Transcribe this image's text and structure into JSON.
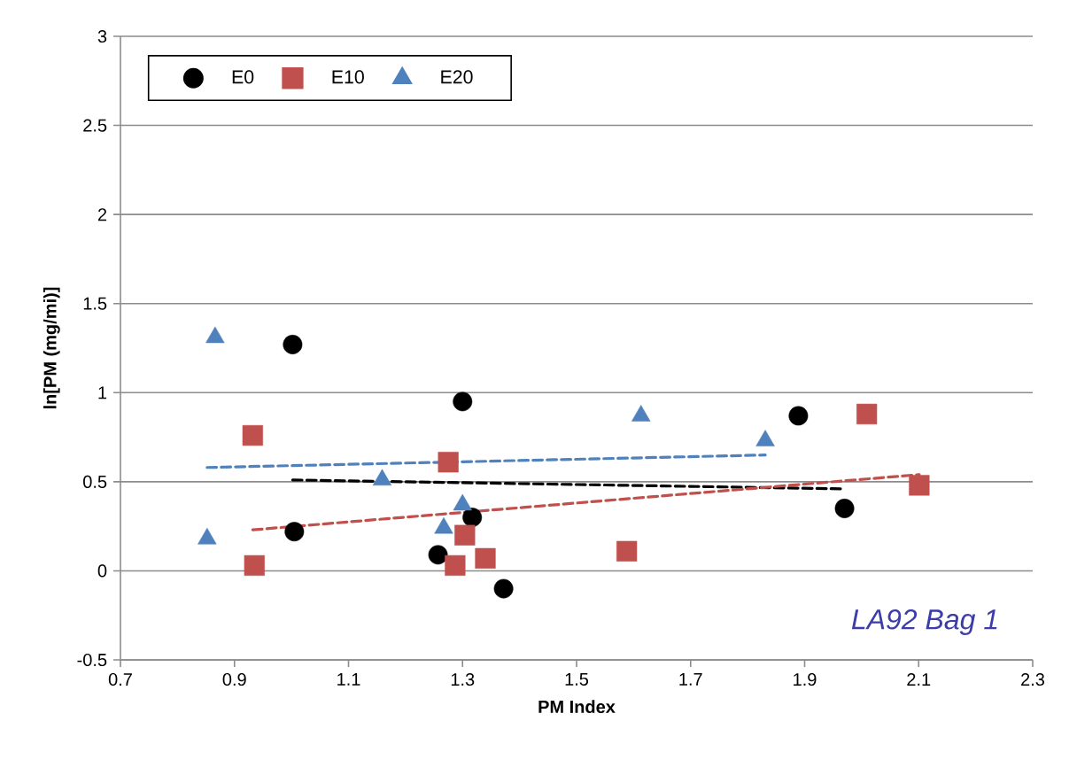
{
  "chart_data": {
    "type": "scatter",
    "xlabel": "PM Index",
    "ylabel": "ln[PM (mg/mi)]",
    "xlim": [
      0.7,
      2.3
    ],
    "ylim": [
      -0.5,
      3
    ],
    "xticks": [
      0.7,
      0.9,
      1.1,
      1.3,
      1.5,
      1.7,
      1.9,
      2.1,
      2.3
    ],
    "yticks": [
      -0.5,
      0,
      0.5,
      1,
      1.5,
      2,
      2.5,
      3
    ],
    "grid": "y",
    "legend": "top left",
    "annotations": [
      "LA92 Bag 1"
    ],
    "series": [
      {
        "name": "E0",
        "color": "#000000",
        "marker": "circle",
        "x": [
          1.002,
          1.3,
          1.317,
          1.005,
          1.257,
          1.372,
          1.889,
          1.97
        ],
        "values": [
          1.27,
          0.95,
          0.3,
          0.22,
          0.09,
          -0.1,
          0.87,
          0.35
        ]
      },
      {
        "name": "E10",
        "color": "#c0504d",
        "marker": "square",
        "x": [
          0.932,
          1.275,
          1.304,
          1.34,
          0.935,
          1.287,
          1.588,
          2.009,
          2.101
        ],
        "values": [
          0.76,
          0.61,
          0.2,
          0.07,
          0.03,
          0.03,
          0.11,
          0.88,
          0.48
        ]
      },
      {
        "name": "E20",
        "color": "#4f81bd",
        "marker": "triangle",
        "x": [
          0.866,
          1.159,
          1.3,
          1.267,
          0.852,
          1.613,
          1.831
        ],
        "values": [
          1.31,
          0.51,
          0.37,
          0.24,
          0.18,
          0.87,
          0.73
        ]
      },
      {
        "type": "line",
        "color": "#000000",
        "line_style": "dashed",
        "marker": "none",
        "x": [
          1.002,
          1.97
        ],
        "values": [
          0.51,
          0.46
        ]
      },
      {
        "type": "line",
        "color": "#c0504d",
        "line_style": "dashed",
        "marker": "none",
        "x": [
          0.932,
          2.101
        ],
        "values": [
          0.23,
          0.54
        ]
      },
      {
        "type": "line",
        "color": "#4f81bd",
        "line_style": "dashed",
        "marker": "none",
        "x": [
          0.852,
          1.831
        ],
        "values": [
          0.58,
          0.65
        ]
      }
    ]
  }
}
